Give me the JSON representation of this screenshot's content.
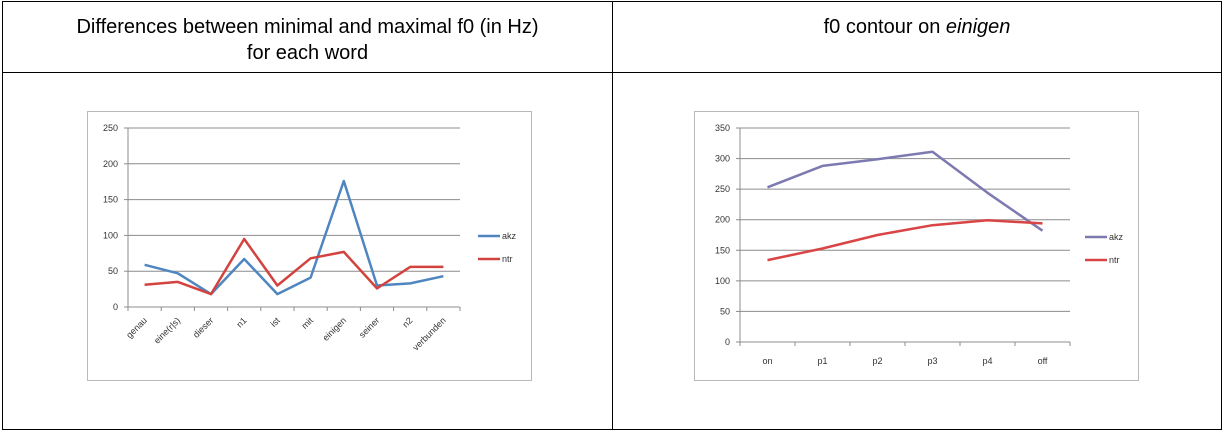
{
  "table": {
    "left_header": {
      "line1": "Differences between minimal and maximal f0 (in Hz)",
      "line2": "for each word"
    },
    "right_header": {
      "prefix": "f0 contour on ",
      "italic": "einigen"
    }
  },
  "colors": {
    "akz_left": "#4f86c0",
    "ntr_left": "#d2433f",
    "akz_right": "#7c7ab0",
    "ntr_right": "#d94545",
    "grid": "#8c8c8c",
    "tick_text": "#333333"
  },
  "chart_data": [
    {
      "type": "line",
      "title": "",
      "xlabel": "",
      "ylabel": "",
      "categories": [
        "genau",
        "eine(r|s)",
        "dieser",
        "n1",
        "ist",
        "mit",
        "einigen",
        "seiner",
        "n2",
        "verbunden"
      ],
      "ylim": [
        0,
        250
      ],
      "yticks": [
        0,
        50,
        100,
        150,
        200,
        250
      ],
      "grid": true,
      "legend": "right",
      "series": [
        {
          "name": "akz",
          "values": [
            59,
            47,
            18,
            67,
            18,
            41,
            176,
            30,
            33,
            43
          ]
        },
        {
          "name": "ntr",
          "values": [
            31,
            35,
            18,
            95,
            30,
            68,
            77,
            26,
            56,
            56
          ]
        }
      ]
    },
    {
      "type": "line",
      "title": "",
      "xlabel": "",
      "ylabel": "",
      "categories": [
        "on",
        "p1",
        "p2",
        "p3",
        "p4",
        "off"
      ],
      "ylim": [
        0,
        350
      ],
      "yticks": [
        0,
        50,
        100,
        150,
        200,
        250,
        300,
        350
      ],
      "grid": true,
      "legend": "right",
      "series": [
        {
          "name": "akz",
          "values": [
            253,
            288,
            299,
            311,
            244,
            182
          ]
        },
        {
          "name": "ntr",
          "values": [
            134,
            153,
            175,
            191,
            199,
            194
          ]
        }
      ]
    }
  ]
}
